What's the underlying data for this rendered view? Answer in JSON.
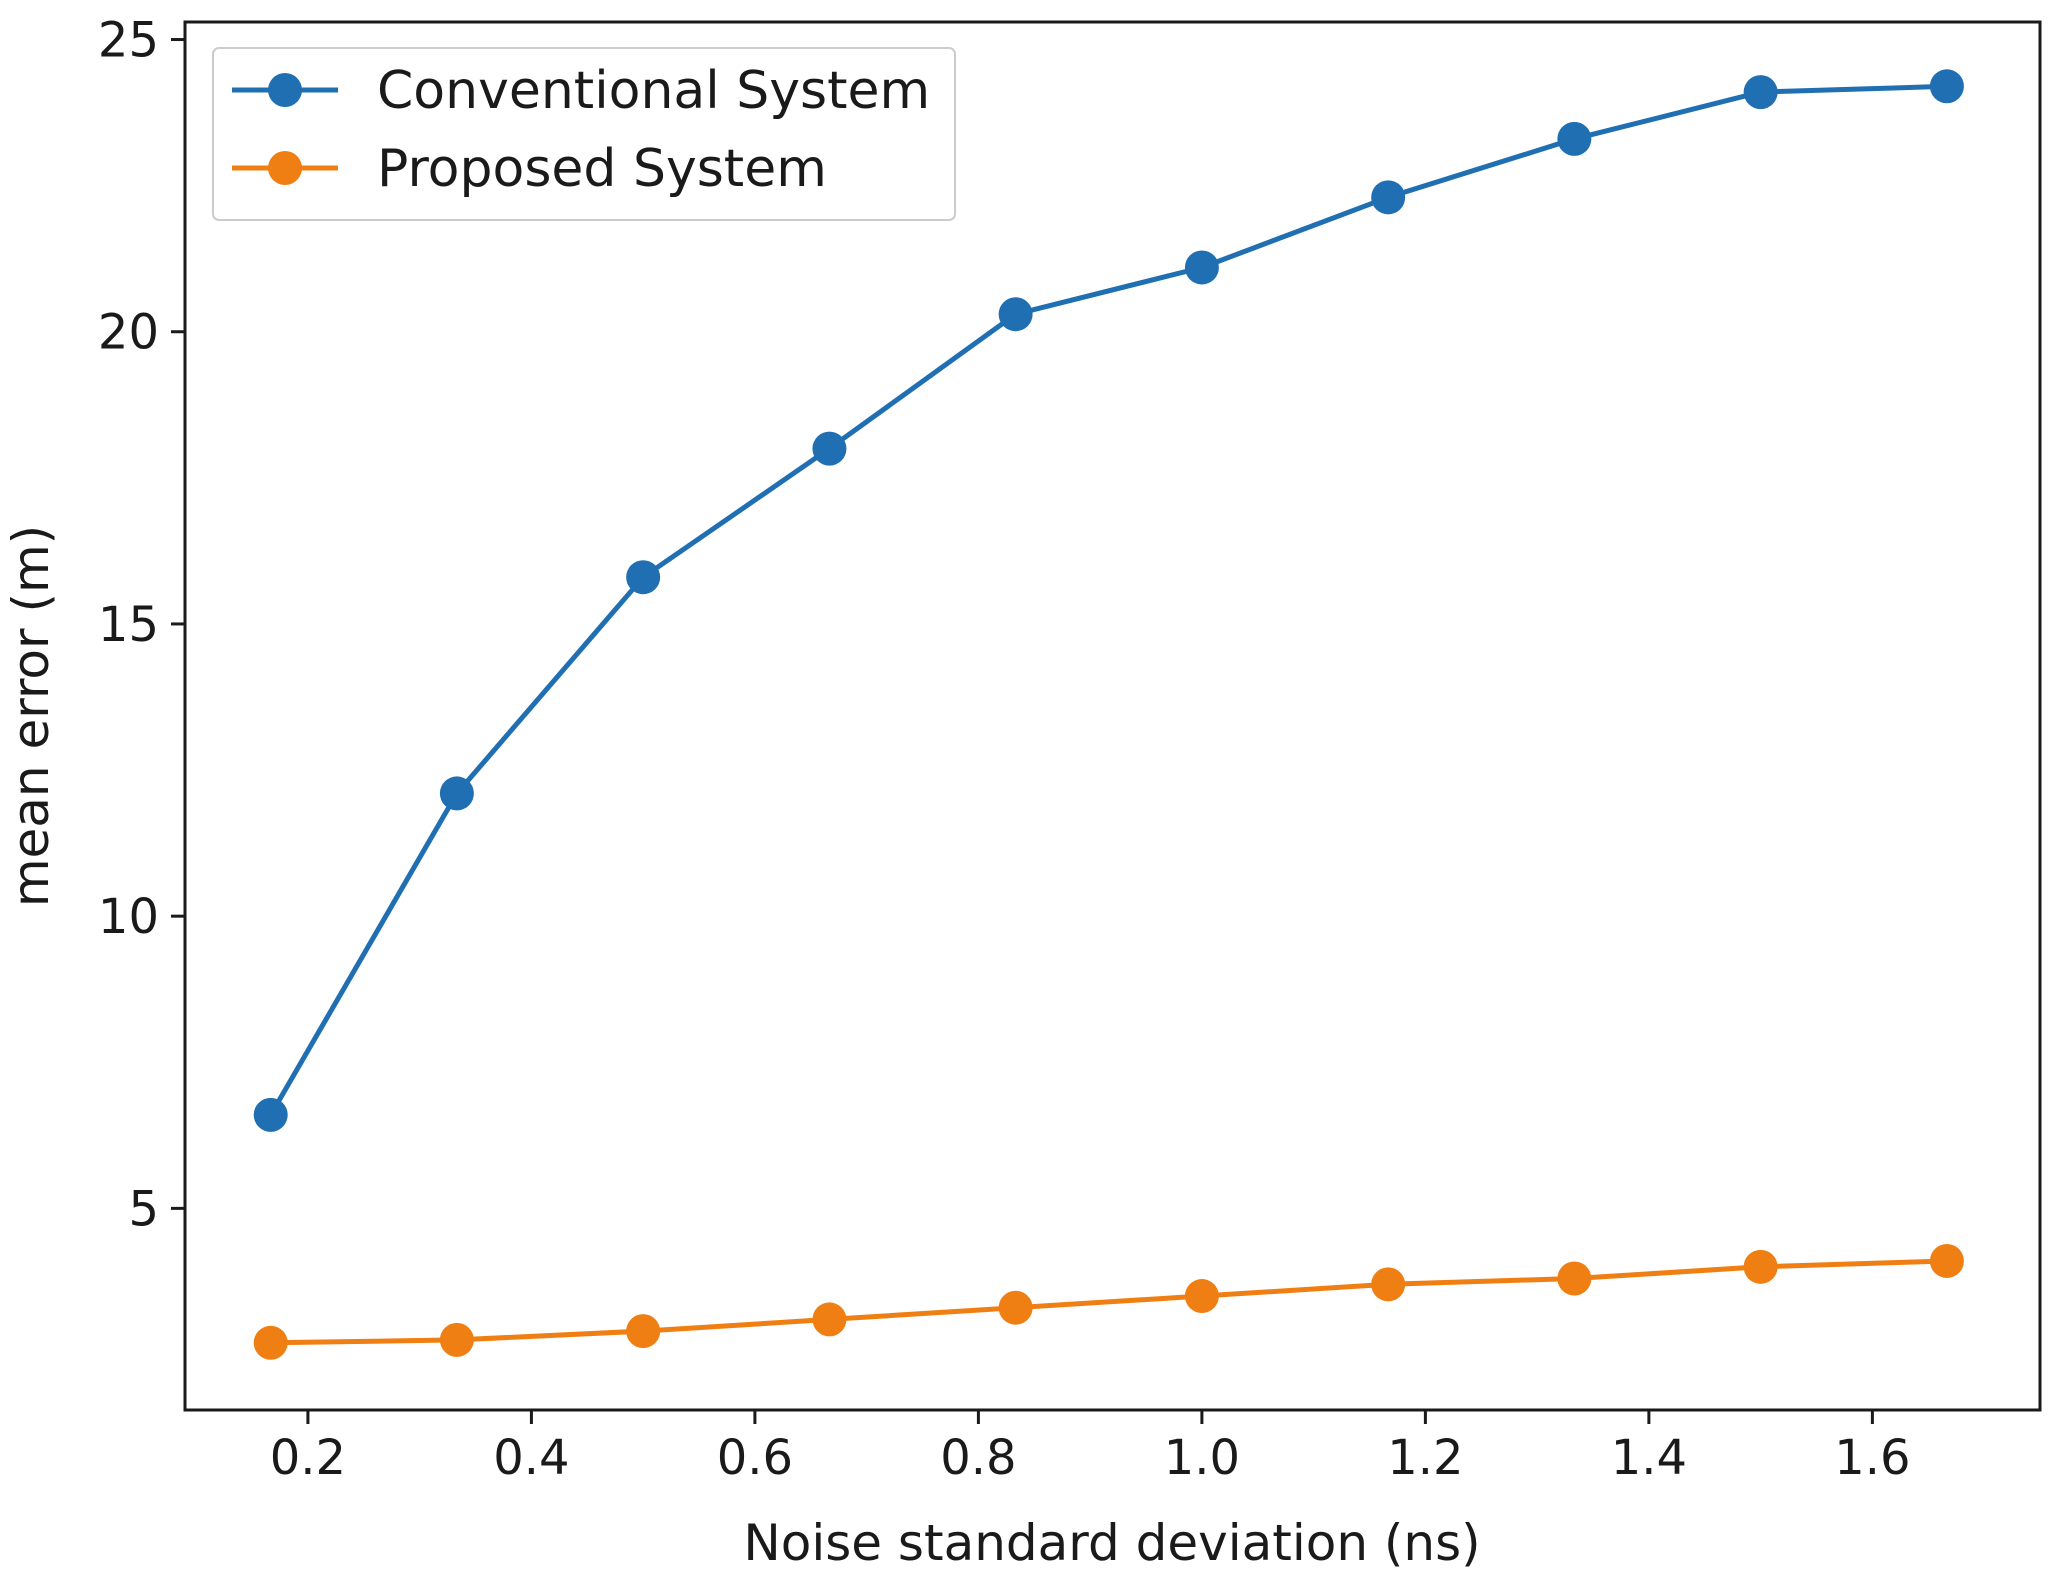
{
  "chart_data": {
    "type": "line",
    "title": "",
    "xlabel": "Noise standard deviation (ns)",
    "ylabel": "mean error (m)",
    "xlim": [
      0.09,
      1.75
    ],
    "ylim": [
      1.55,
      25.3
    ],
    "xticks": [
      0.2,
      0.4,
      0.6,
      0.8,
      1.0,
      1.2,
      1.4,
      1.6
    ],
    "xtick_labels": [
      "0.2",
      "0.4",
      "0.6",
      "0.8",
      "1.0",
      "1.2",
      "1.4",
      "1.6"
    ],
    "yticks": [
      5,
      10,
      15,
      20,
      25
    ],
    "ytick_labels": [
      "5",
      "10",
      "15",
      "20",
      "25"
    ],
    "x": [
      0.1667,
      0.3333,
      0.5,
      0.6667,
      0.8333,
      1.0,
      1.1667,
      1.3333,
      1.5,
      1.6667
    ],
    "series": [
      {
        "name": "Conventional System",
        "color": "#1f6fb2",
        "values": [
          6.6,
          12.1,
          15.8,
          18.0,
          20.3,
          21.1,
          22.3,
          23.3,
          24.1,
          24.2
        ]
      },
      {
        "name": "Proposed System",
        "color": "#f07f13",
        "values": [
          2.7,
          2.75,
          2.9,
          3.1,
          3.3,
          3.5,
          3.7,
          3.8,
          4.0,
          4.1
        ]
      }
    ],
    "legend": "top-left",
    "grid": false
  }
}
